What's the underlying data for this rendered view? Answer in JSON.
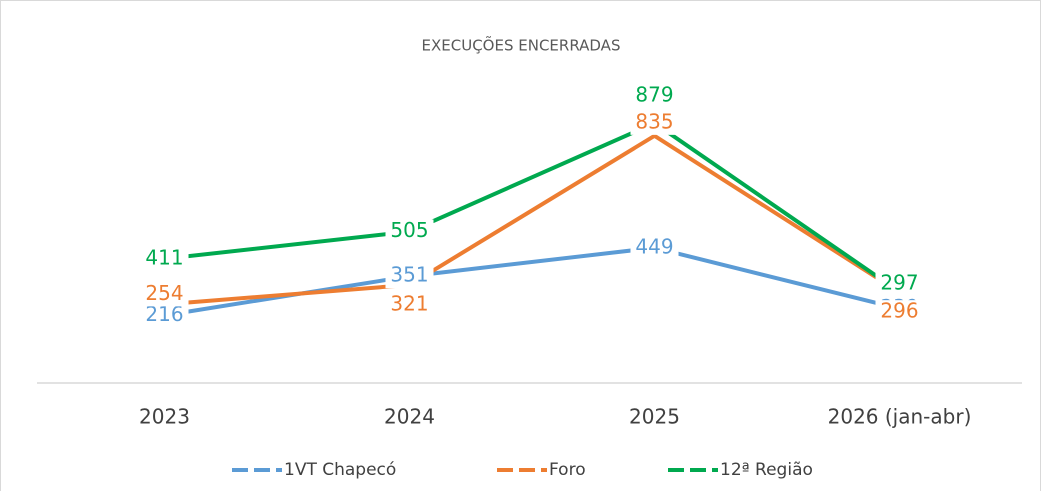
{
  "chart_data": {
    "type": "line",
    "title": "EXECUÇÕES ENCERRADAS",
    "categories": [
      "2023",
      "2024",
      "2025",
      "2026 (jan-abr)"
    ],
    "series": [
      {
        "name": "1VT Chapecó",
        "color": "#5b9bd5",
        "values": [
          216,
          351,
          449,
          239
        ]
      },
      {
        "name": "Foro",
        "color": "#ed7d31",
        "values": [
          254,
          321,
          835,
          296
        ]
      },
      {
        "name": "12ª Região",
        "color": "#00a94f",
        "values": [
          411,
          505,
          879,
          297
        ]
      }
    ],
    "ylim": [
      0,
      1000
    ],
    "legend": "bottom",
    "data_labels": true
  }
}
